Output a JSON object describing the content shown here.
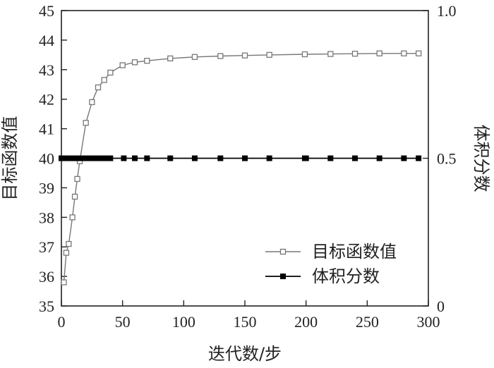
{
  "chart_data": {
    "type": "line",
    "title": "",
    "xlabel": "迭代数/步",
    "ylabel_left": "目标函数值",
    "ylabel_right": "体积分数",
    "xlim": [
      0,
      300
    ],
    "ylim_left": [
      35,
      45
    ],
    "ylim_right": [
      0,
      1.0
    ],
    "x_ticks": [
      "0",
      "50",
      "100",
      "150",
      "200",
      "250",
      "300"
    ],
    "y_left_ticks": [
      "35",
      "36",
      "37",
      "38",
      "39",
      "40",
      "41",
      "42",
      "43",
      "44",
      "45"
    ],
    "y_right_ticks": [
      "0",
      "0.5",
      "1.0"
    ],
    "legend_position": "bottom-right",
    "grid": false,
    "series": [
      {
        "name": "目标函数值",
        "axis": "left",
        "marker": "open-square",
        "color": "#777777",
        "x": [
          2,
          4,
          6,
          9,
          11,
          13,
          15,
          20,
          25,
          30,
          35,
          40,
          50,
          60,
          70,
          89,
          109,
          130,
          150,
          170,
          199,
          220,
          240,
          260,
          280,
          292
        ],
        "y": [
          35.8,
          36.8,
          37.1,
          38.0,
          38.7,
          39.3,
          39.9,
          41.2,
          41.9,
          42.4,
          42.65,
          42.9,
          43.15,
          43.25,
          43.3,
          43.38,
          43.43,
          43.46,
          43.48,
          43.5,
          43.52,
          43.53,
          43.54,
          43.55,
          43.55,
          43.55
        ]
      },
      {
        "name": "体积分数",
        "axis": "right",
        "marker": "filled-square",
        "color": "#000000",
        "x": [
          0,
          2,
          4,
          6,
          8,
          10,
          12,
          14,
          16,
          18,
          20,
          22,
          24,
          26,
          28,
          30,
          32,
          34,
          36,
          38,
          40,
          51,
          60,
          70,
          89,
          109,
          130,
          150,
          170,
          199,
          200,
          220,
          240,
          260,
          280,
          292
        ],
        "y": [
          0.5,
          0.5,
          0.5,
          0.5,
          0.5,
          0.5,
          0.5,
          0.5,
          0.5,
          0.5,
          0.5,
          0.5,
          0.5,
          0.5,
          0.5,
          0.5,
          0.5,
          0.5,
          0.5,
          0.5,
          0.5,
          0.5,
          0.5,
          0.5,
          0.5,
          0.5,
          0.5,
          0.5,
          0.5,
          0.5,
          0.5,
          0.5,
          0.5,
          0.5,
          0.5,
          0.5
        ]
      }
    ]
  }
}
